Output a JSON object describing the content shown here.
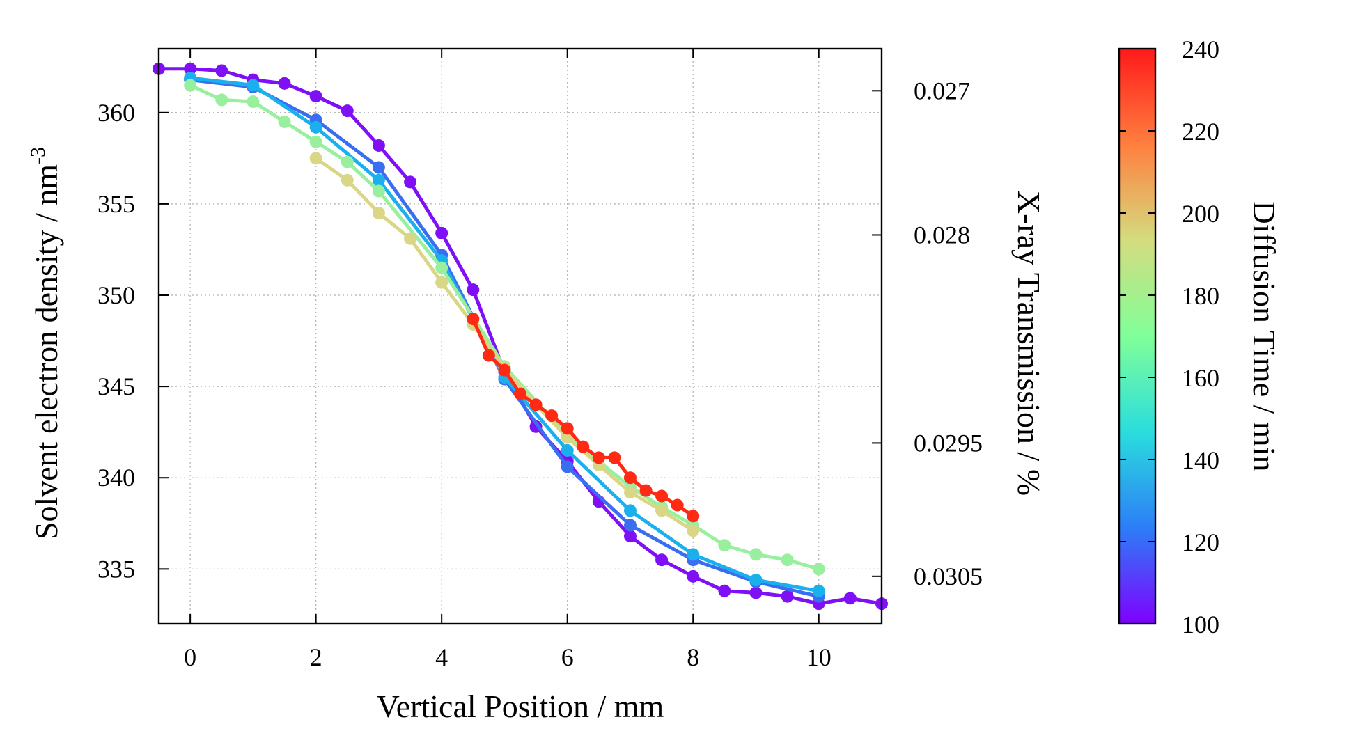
{
  "chart_data": {
    "type": "line",
    "title": "",
    "xlabel": "Vertical Position / mm",
    "ylabel": "Solvent electron density / nm",
    "ylabel_superscript": "-3",
    "y2label": "X-ray Transmission / %",
    "colorbar_label": "Diffusion Time / min",
    "xlim": [
      -0.5,
      11
    ],
    "ylim": [
      332,
      363.5
    ],
    "x_ticks": [
      0,
      2,
      4,
      6,
      8,
      10
    ],
    "y_ticks": [
      335,
      340,
      345,
      350,
      355,
      360
    ],
    "y2_ticks": [
      {
        "label": "0.027",
        "y": 361.2
      },
      {
        "label": "0.028",
        "y": 353.3
      },
      {
        "label": "0.0295",
        "y": 341.9
      },
      {
        "label": "0.0305",
        "y": 334.6
      }
    ],
    "colorbar": {
      "min": 100,
      "max": 240,
      "ticks": [
        100,
        120,
        140,
        160,
        180,
        200,
        220,
        240
      ],
      "colors": [
        "#7f00ff",
        "#2c7ef7",
        "#2adddd",
        "#80ff99",
        "#d4dc7f",
        "#ff7f3f",
        "#ff1a1a"
      ]
    },
    "grid": true,
    "series": [
      {
        "time": 102,
        "color": "#7f10f5",
        "x": [
          -0.5,
          0,
          0.5,
          1,
          1.5,
          2,
          2.5,
          3,
          3.5,
          4,
          4.5,
          5,
          5.5,
          6,
          6.5,
          7,
          7.5,
          8,
          8.5,
          9,
          9.5,
          10,
          10.5,
          11
        ],
        "y": [
          362.4,
          362.4,
          362.3,
          361.8,
          361.6,
          360.9,
          360.1,
          358.2,
          356.2,
          353.4,
          350.3,
          345.8,
          342.8,
          340.9,
          338.7,
          336.8,
          335.5,
          334.6,
          333.8,
          333.7,
          333.5,
          333.1,
          333.4,
          333.1
        ]
      },
      {
        "time": 125,
        "color": "#3a6ef0",
        "x": [
          0,
          1,
          2,
          3,
          4,
          5,
          6,
          7,
          8,
          9,
          10
        ],
        "y": [
          361.8,
          361.4,
          359.6,
          357.0,
          352.2,
          345.4,
          340.6,
          337.4,
          335.5,
          334.3,
          333.5
        ]
      },
      {
        "time": 140,
        "color": "#1ab0ee",
        "x": [
          0,
          1,
          2,
          3,
          4,
          5,
          6,
          7,
          8,
          9,
          10
        ],
        "y": [
          361.9,
          361.5,
          359.2,
          356.3,
          351.9,
          345.5,
          341.5,
          338.2,
          335.8,
          334.4,
          333.8
        ]
      },
      {
        "time": 170,
        "color": "#98f09e",
        "x": [
          0,
          0.5,
          1,
          1.5,
          2,
          2.5,
          3,
          4,
          5,
          6,
          7,
          7.5,
          8,
          8.5,
          9,
          9.5,
          10
        ],
        "y": [
          361.5,
          360.7,
          360.6,
          359.5,
          358.4,
          357.3,
          355.7,
          351.5,
          346.1,
          342.3,
          339.5,
          338.4,
          337.4,
          336.3,
          335.8,
          335.5,
          335.0
        ]
      },
      {
        "time": 195,
        "color": "#d9d786",
        "x": [
          2,
          2.5,
          3,
          3.5,
          4,
          4.5,
          5,
          5.5,
          6,
          6.5,
          7,
          7.5,
          8
        ],
        "y": [
          357.5,
          356.3,
          354.5,
          353.1,
          350.7,
          348.4,
          346.0,
          344.0,
          342.2,
          340.7,
          339.2,
          338.2,
          337.1
        ]
      },
      {
        "time": 240,
        "color": "#ff2a14",
        "x": [
          4.5,
          4.75,
          5,
          5.25,
          5.5,
          5.75,
          6,
          6.25,
          6.5,
          6.75,
          7,
          7.25,
          7.5,
          7.75,
          8
        ],
        "y": [
          348.7,
          346.7,
          345.9,
          344.6,
          344.0,
          343.4,
          342.7,
          341.7,
          341.1,
          341.1,
          340.0,
          339.3,
          339.0,
          338.5,
          337.9
        ]
      }
    ]
  }
}
